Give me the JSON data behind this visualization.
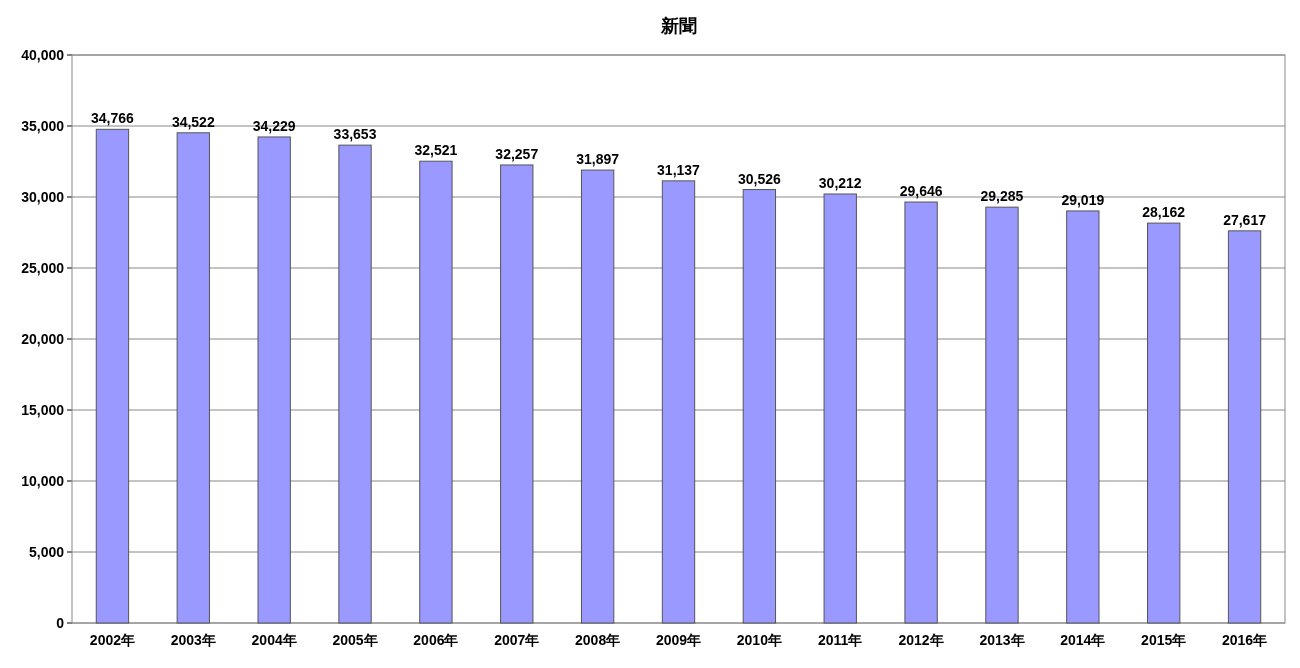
{
  "chart_data": {
    "type": "bar",
    "title": "新聞",
    "categories": [
      "2002年",
      "2003年",
      "2004年",
      "2005年",
      "2006年",
      "2007年",
      "2008年",
      "2009年",
      "2010年",
      "2011年",
      "2012年",
      "2013年",
      "2014年",
      "2015年",
      "2016年"
    ],
    "values": [
      34766,
      34522,
      34229,
      33653,
      32521,
      32257,
      31897,
      31137,
      30526,
      30212,
      29646,
      29285,
      29019,
      28162,
      27617
    ],
    "color": "#9999ff",
    "ylim": [
      0,
      40000
    ],
    "yticks": [
      {
        "value": 0,
        "label": "0"
      },
      {
        "value": 5000,
        "label": "5,000"
      },
      {
        "value": 10000,
        "label": "10,000"
      },
      {
        "value": 15000,
        "label": "15,000"
      },
      {
        "value": 20000,
        "label": "20,000"
      },
      {
        "value": 25000,
        "label": "25,000"
      },
      {
        "value": 30000,
        "label": "30,000"
      },
      {
        "value": 35000,
        "label": "35,000"
      },
      {
        "value": 40000,
        "label": "40,000"
      }
    ],
    "value_labels": [
      "34,766",
      "34,522",
      "34,229",
      "33,653",
      "32,521",
      "32,257",
      "31,897",
      "31,137",
      "30,526",
      "30,212",
      "29,646",
      "29,285",
      "29,019",
      "28,162",
      "27,617"
    ],
    "grid": "y"
  }
}
